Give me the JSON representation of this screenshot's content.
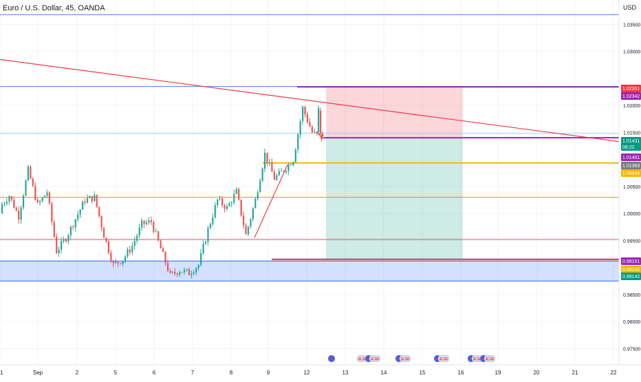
{
  "header": {
    "title": "Euro / U.S. Dollar, 45, OANDA",
    "currency": "USD"
  },
  "colors": {
    "up": "#26a69a",
    "down": "#ef5350",
    "grid": "#f0f3fa",
    "blue_line": "#2962ff",
    "trend_red": "#f23645",
    "orange_line": "#f57c00",
    "yellow_line": "#f5b700",
    "purple_line": "#9c27b0",
    "target_zone": "rgba(242,54,69,0.2)",
    "stop_zone": "rgba(8,153,129,0.2)",
    "demand_zone": "rgba(41,98,255,0.2)"
  },
  "chart_data": {
    "type": "candlestick",
    "symbol": "EURUSD",
    "timeframe": "45",
    "xlabels": [
      "1",
      "Sep",
      "2",
      "5",
      "6",
      "7",
      "8",
      "9",
      "12",
      "13",
      "14",
      "15",
      "16",
      "19",
      "20",
      "21",
      "22"
    ],
    "ylim": [
      0.972,
      1.0395
    ],
    "yticks": [
      "1.03500",
      "1.03000",
      "1.02000",
      "1.01500",
      "1.00500",
      "1.00000",
      "0.99500",
      "0.98500",
      "0.98000",
      "0.97500"
    ],
    "price_labels": [
      {
        "text": "1.02351",
        "color": "#f23645"
      },
      {
        "text": "1.02342",
        "color": "#9c27b0"
      },
      {
        "text": "1.01431",
        "sub": "08:22",
        "color": "#089981"
      },
      {
        "text": "1.01401",
        "color": "#9c27b0"
      },
      {
        "text": "1.01393",
        "color": "#787b86"
      },
      {
        "text": "1.00934",
        "color": "#f5b700"
      },
      {
        "text": "0.99151",
        "color": "#9c27b0"
      },
      {
        "text": "0.99142",
        "color": "#f5b700"
      },
      {
        "text": "0.99142",
        "color": "#089981"
      }
    ],
    "horizontal_levels": [
      {
        "price": 1.0368,
        "color": "blue"
      },
      {
        "price": 1.0235,
        "color": "blue"
      },
      {
        "price": 1.0148,
        "color": "blue-light"
      },
      {
        "price": 1.003,
        "color": "orange"
      },
      {
        "price": 0.9952,
        "color": "trend-red"
      }
    ],
    "position": {
      "type": "short",
      "entry": 1.01401,
      "target": 0.99151,
      "stop": 1.02342
    },
    "demand_zone": [
      0.9875,
      0.9912
    ],
    "trendline_desc": "descending red trendline from 1.0285 at left edge to 1.0133 at right edge",
    "candles_ohlc_path": [
      [
        1.0,
        1.0012
      ],
      [
        1.0005,
        1.0033
      ],
      [
        1.002,
        0.9995
      ],
      [
        1.006,
        1.008
      ],
      [
        1.0055,
        1.0015
      ],
      [
        1.0025,
        1.004
      ],
      [
        1.0,
        0.993
      ],
      [
        0.9945,
        0.9955
      ],
      [
        0.996,
        0.999
      ],
      [
        1.0005,
        1.0025
      ],
      [
        1.0015,
        1.003
      ],
      [
        0.997,
        0.996
      ],
      [
        0.9935,
        0.9905
      ],
      [
        0.9895,
        0.9915
      ],
      [
        0.993,
        0.994
      ],
      [
        0.9955,
        0.998
      ],
      [
        0.999,
        0.9985
      ],
      [
        0.995,
        0.9935
      ],
      [
        0.9905,
        0.9885
      ],
      [
        0.989,
        0.9895
      ],
      [
        0.99,
        0.989
      ],
      [
        0.989,
        0.9905
      ],
      [
        0.992,
        0.997
      ],
      [
        1.0005,
        1.0025
      ],
      [
        1.003,
        1.001
      ],
      [
        1.0025,
        1.004
      ],
      [
        1.0005,
        0.996
      ],
      [
        0.9985,
        1.0025
      ],
      [
        1.0075,
        1.011
      ],
      [
        1.005,
        1.0065
      ],
      [
        1.0055,
        1.008
      ],
      [
        1.0085,
        1.01
      ],
      [
        1.013,
        1.0195
      ],
      [
        1.016,
        1.015
      ],
      [
        1.014,
        1.014
      ]
    ]
  }
}
